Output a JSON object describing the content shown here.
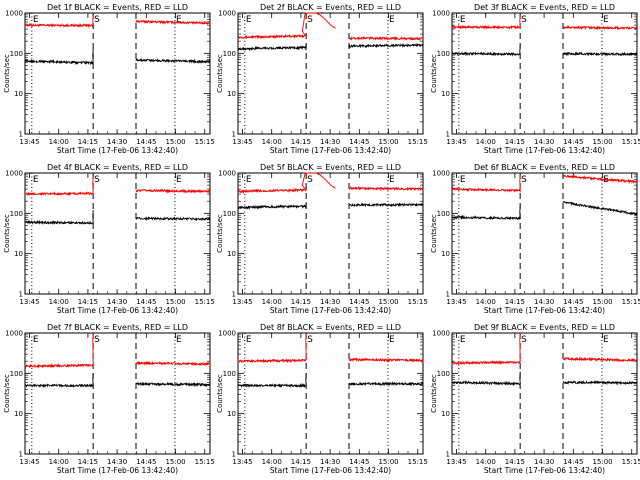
{
  "chart_data": [
    {
      "type": "line",
      "title": "Det 1f BLACK = Events, RED = LLD",
      "xlabel": "Start Time (17-Feb-06 13:42:40)",
      "ylabel": "Counts/sec",
      "yscale": "log",
      "ylim": [
        1,
        1000
      ],
      "y_ticks": [
        "1",
        "10",
        "100",
        "1000"
      ],
      "x_ticks": [
        "13:45",
        "14:00",
        "14:15",
        "14:30",
        "14:45",
        "15:00",
        "15:15"
      ],
      "markers": [
        {
          "label": "E",
          "line": "dotted",
          "x_min": 3.5
        },
        {
          "label": "S",
          "line": "dashed",
          "x_min": 35
        },
        {
          "label": "",
          "line": "dashed",
          "x_min": 57
        },
        {
          "label": "E",
          "line": "dotted",
          "x_min": 77
        }
      ],
      "series": [
        {
          "color": "#ff0000",
          "segments": [
            {
              "x_min": [
                0,
                35
              ],
              "y": [
                500,
                490
              ],
              "rise_to": 900
            },
            {
              "x_min": [
                57,
                95
              ],
              "y": [
                620,
                560
              ]
            }
          ]
        },
        {
          "color": "#000000",
          "segments": [
            {
              "x_min": [
                0,
                35
              ],
              "y": [
                65,
                58
              ],
              "rise_to": 130
            },
            {
              "x_min": [
                57,
                95
              ],
              "y": [
                68,
                62
              ]
            }
          ]
        }
      ]
    },
    {
      "type": "line",
      "title": "Det 2f BLACK = Events, RED = LLD",
      "xlabel": "Start Time (17-Feb-06 13:42:40)",
      "ylabel": "Counts/sec",
      "yscale": "log",
      "ylim": [
        1,
        1000
      ],
      "y_ticks": [
        "1",
        "10",
        "100",
        "1000"
      ],
      "x_ticks": [
        "13:45",
        "14:00",
        "14:15",
        "14:30",
        "14:45",
        "15:00",
        "15:15"
      ],
      "markers": [
        {
          "label": "E",
          "line": "dotted",
          "x_min": 3.5
        },
        {
          "label": "S",
          "line": "dashed",
          "x_min": 35
        },
        {
          "label": "",
          "line": "dashed",
          "x_min": 57
        },
        {
          "label": "E",
          "line": "dotted",
          "x_min": 77
        }
      ],
      "series": [
        {
          "color": "#ff0000",
          "segments": [
            {
              "x_min": [
                0,
                35
              ],
              "y": [
                250,
                270
              ],
              "rise_to": 1000,
              "flare": true
            },
            {
              "x_min": [
                57,
                95
              ],
              "y": [
                240,
                230
              ]
            }
          ]
        },
        {
          "color": "#000000",
          "segments": [
            {
              "x_min": [
                0,
                35
              ],
              "y": [
                130,
                140
              ],
              "rise_to": 170
            },
            {
              "x_min": [
                57,
                95
              ],
              "y": [
                150,
                160
              ]
            }
          ]
        }
      ]
    },
    {
      "type": "line",
      "title": "Det 3f BLACK = Events, RED = LLD",
      "xlabel": "Start Time (17-Feb-06 13:42:40)",
      "ylabel": "Counts/sec",
      "yscale": "log",
      "ylim": [
        1,
        1000
      ],
      "y_ticks": [
        "1",
        "10",
        "100",
        "1000"
      ],
      "x_ticks": [
        "13:45",
        "14:00",
        "14:15",
        "14:30",
        "14:45",
        "15:00",
        "15:15"
      ],
      "markers": [
        {
          "label": "E",
          "line": "dotted",
          "x_min": 3.5
        },
        {
          "label": "S",
          "line": "dashed",
          "x_min": 35
        },
        {
          "label": "",
          "line": "dashed",
          "x_min": 57
        },
        {
          "label": "E",
          "line": "dotted",
          "x_min": 77
        }
      ],
      "series": [
        {
          "color": "#ff0000",
          "segments": [
            {
              "x_min": [
                0,
                35
              ],
              "y": [
                450,
                440
              ],
              "rise_to": 900
            },
            {
              "x_min": [
                57,
                95
              ],
              "y": [
                440,
                420
              ]
            }
          ]
        },
        {
          "color": "#000000",
          "segments": [
            {
              "x_min": [
                0,
                35
              ],
              "y": [
                100,
                95
              ],
              "rise_to": 160
            },
            {
              "x_min": [
                57,
                95
              ],
              "y": [
                98,
                95
              ]
            }
          ]
        }
      ]
    },
    {
      "type": "line",
      "title": "Det 4f BLACK = Events, RED = LLD",
      "xlabel": "Start Time (17-Feb-06 13:42:40)",
      "ylabel": "Counts/sec",
      "yscale": "log",
      "ylim": [
        1,
        1000
      ],
      "y_ticks": [
        "1",
        "10",
        "100",
        "1000"
      ],
      "x_ticks": [
        "13:45",
        "14:00",
        "14:15",
        "14:30",
        "14:45",
        "15:00",
        "15:15"
      ],
      "markers": [
        {
          "label": "E",
          "line": "dotted",
          "x_min": 3.5
        },
        {
          "label": "S",
          "line": "dashed",
          "x_min": 35
        },
        {
          "label": "",
          "line": "dashed",
          "x_min": 57
        },
        {
          "label": "E",
          "line": "dotted",
          "x_min": 77
        }
      ],
      "series": [
        {
          "color": "#ff0000",
          "segments": [
            {
              "x_min": [
                0,
                35
              ],
              "y": [
                300,
                310
              ],
              "rise_to": 800
            },
            {
              "x_min": [
                57,
                95
              ],
              "y": [
                370,
                350
              ]
            }
          ]
        },
        {
          "color": "#000000",
          "segments": [
            {
              "x_min": [
                0,
                35
              ],
              "y": [
                60,
                58
              ],
              "rise_to": 120
            },
            {
              "x_min": [
                57,
                95
              ],
              "y": [
                75,
                72
              ]
            }
          ]
        }
      ]
    },
    {
      "type": "line",
      "title": "Det 5f BLACK = Events, RED = LLD",
      "xlabel": "Start Time (17-Feb-06 13:42:40)",
      "ylabel": "Counts/sec",
      "yscale": "log",
      "ylim": [
        1,
        1000
      ],
      "y_ticks": [
        "1",
        "10",
        "100",
        "1000"
      ],
      "x_ticks": [
        "13:45",
        "14:00",
        "14:15",
        "14:30",
        "14:45",
        "15:00",
        "15:15"
      ],
      "markers": [
        {
          "label": "E",
          "line": "dotted",
          "x_min": 3.5
        },
        {
          "label": "S",
          "line": "dashed",
          "x_min": 35
        },
        {
          "label": "",
          "line": "dashed",
          "x_min": 57
        },
        {
          "label": "E",
          "line": "dotted",
          "x_min": 77
        }
      ],
      "series": [
        {
          "color": "#ff0000",
          "segments": [
            {
              "x_min": [
                0,
                35
              ],
              "y": [
                350,
                380
              ],
              "rise_to": 1000,
              "flare": true
            },
            {
              "x_min": [
                57,
                95
              ],
              "y": [
                420,
                400
              ]
            }
          ]
        },
        {
          "color": "#000000",
          "segments": [
            {
              "x_min": [
                0,
                35
              ],
              "y": [
                140,
                150
              ],
              "rise_to": 190
            },
            {
              "x_min": [
                57,
                95
              ],
              "y": [
                160,
                165
              ]
            }
          ]
        }
      ]
    },
    {
      "type": "line",
      "title": "Det 6f BLACK = Events, RED = LLD",
      "xlabel": "Start Time (17-Feb-06 13:42:40)",
      "ylabel": "Counts/sec",
      "yscale": "log",
      "ylim": [
        1,
        1000
      ],
      "y_ticks": [
        "1",
        "10",
        "100",
        "1000"
      ],
      "x_ticks": [
        "13:45",
        "14:00",
        "14:15",
        "14:30",
        "14:45",
        "15:00",
        "15:15"
      ],
      "markers": [
        {
          "label": "E",
          "line": "dotted",
          "x_min": 3.5
        },
        {
          "label": "S",
          "line": "dashed",
          "x_min": 35
        },
        {
          "label": "",
          "line": "dashed",
          "x_min": 57
        },
        {
          "label": "E",
          "line": "dotted",
          "x_min": 77
        }
      ],
      "series": [
        {
          "color": "#ff0000",
          "segments": [
            {
              "x_min": [
                0,
                35
              ],
              "y": [
                400,
                370
              ],
              "rise_to": 900
            },
            {
              "x_min": [
                57,
                95
              ],
              "y": [
                850,
                600
              ]
            }
          ]
        },
        {
          "color": "#000000",
          "segments": [
            {
              "x_min": [
                0,
                35
              ],
              "y": [
                80,
                75
              ],
              "rise_to": 150
            },
            {
              "x_min": [
                57,
                95
              ],
              "y": [
                190,
                95
              ]
            }
          ]
        }
      ]
    },
    {
      "type": "line",
      "title": "Det 7f BLACK = Events, RED = LLD",
      "xlabel": "Start Time (17-Feb-06 13:42:40)",
      "ylabel": "Counts/sec",
      "yscale": "log",
      "ylim": [
        1,
        1000
      ],
      "y_ticks": [
        "1",
        "10",
        "100",
        "1000"
      ],
      "x_ticks": [
        "13:45",
        "14:00",
        "14:15",
        "14:30",
        "14:45",
        "15:00",
        "15:15"
      ],
      "markers": [
        {
          "label": "E",
          "line": "dotted",
          "x_min": 3.5
        },
        {
          "label": "S",
          "line": "dashed",
          "x_min": 35
        },
        {
          "label": "",
          "line": "dashed",
          "x_min": 57
        },
        {
          "label": "E",
          "line": "dotted",
          "x_min": 77
        }
      ],
      "series": [
        {
          "color": "#ff0000",
          "segments": [
            {
              "x_min": [
                0,
                35
              ],
              "y": [
                150,
                160
              ],
              "rise_to": 1000
            },
            {
              "x_min": [
                57,
                95
              ],
              "y": [
                180,
                170
              ]
            }
          ]
        },
        {
          "color": "#000000",
          "segments": [
            {
              "x_min": [
                0,
                35
              ],
              "y": [
                50,
                50
              ],
              "rise_to": 100
            },
            {
              "x_min": [
                57,
                95
              ],
              "y": [
                55,
                52
              ]
            }
          ]
        }
      ]
    },
    {
      "type": "line",
      "title": "Det 8f BLACK = Events, RED = LLD",
      "xlabel": "Start Time (17-Feb-06 13:42:40)",
      "ylabel": "Counts/sec",
      "yscale": "log",
      "ylim": [
        1,
        1000
      ],
      "y_ticks": [
        "1",
        "10",
        "100",
        "1000"
      ],
      "x_ticks": [
        "13:45",
        "14:00",
        "14:15",
        "14:30",
        "14:45",
        "15:00",
        "15:15"
      ],
      "markers": [
        {
          "label": "E",
          "line": "dotted",
          "x_min": 3.5
        },
        {
          "label": "S",
          "line": "dashed",
          "x_min": 35
        },
        {
          "label": "",
          "line": "dashed",
          "x_min": 57
        },
        {
          "label": "E",
          "line": "dotted",
          "x_min": 77
        }
      ],
      "series": [
        {
          "color": "#ff0000",
          "segments": [
            {
              "x_min": [
                0,
                35
              ],
              "y": [
                200,
                210
              ],
              "rise_to": 1000
            },
            {
              "x_min": [
                57,
                95
              ],
              "y": [
                220,
                210
              ]
            }
          ]
        },
        {
          "color": "#000000",
          "segments": [
            {
              "x_min": [
                0,
                35
              ],
              "y": [
                50,
                50
              ],
              "rise_to": 100
            },
            {
              "x_min": [
                57,
                95
              ],
              "y": [
                55,
                55
              ]
            }
          ]
        }
      ]
    },
    {
      "type": "line",
      "title": "Det 9f BLACK = Events, RED = LLD",
      "xlabel": "Start Time (17-Feb-06 13:42:40)",
      "ylabel": "Counts/sec",
      "yscale": "log",
      "ylim": [
        1,
        1000
      ],
      "y_ticks": [
        "1",
        "10",
        "100",
        "1000"
      ],
      "x_ticks": [
        "13:45",
        "14:00",
        "14:15",
        "14:30",
        "14:45",
        "15:00",
        "15:15"
      ],
      "markers": [
        {
          "label": "E",
          "line": "dotted",
          "x_min": 3.5
        },
        {
          "label": "S",
          "line": "dashed",
          "x_min": 35
        },
        {
          "label": "",
          "line": "dashed",
          "x_min": 57
        },
        {
          "label": "E",
          "line": "dotted",
          "x_min": 77
        }
      ],
      "series": [
        {
          "color": "#ff0000",
          "segments": [
            {
              "x_min": [
                0,
                35
              ],
              "y": [
                180,
                190
              ],
              "rise_to": 1000
            },
            {
              "x_min": [
                57,
                95
              ],
              "y": [
                230,
                210
              ]
            }
          ]
        },
        {
          "color": "#000000",
          "segments": [
            {
              "x_min": [
                0,
                35
              ],
              "y": [
                60,
                55
              ],
              "rise_to": 110
            },
            {
              "x_min": [
                57,
                95
              ],
              "y": [
                60,
                58
              ]
            }
          ]
        }
      ]
    }
  ]
}
